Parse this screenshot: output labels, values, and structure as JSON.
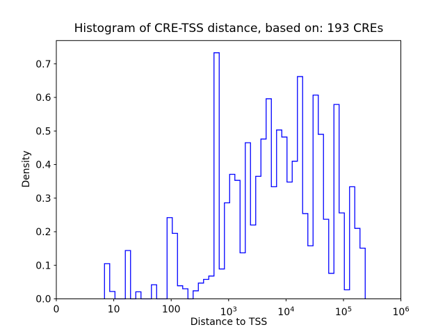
{
  "figure": {
    "title": "Histogram of CRE-TSS distance, based on: 193 CREs",
    "xlabel": "Distance to TSS",
    "ylabel": "Density",
    "cre_count": "193"
  },
  "chart_data": {
    "type": "bar",
    "subtype": "step-histogram",
    "title": "Histogram of CRE-TSS distance, based on: 193 CREs",
    "xlabel": "Distance to TSS",
    "ylabel": "Density",
    "x_scale": "log",
    "grid": false,
    "legend": "none",
    "line_color": "#0000ff",
    "axes_color": "#000000",
    "background_color": "#ffffff",
    "ylim": [
      0,
      0.769
    ],
    "xlim": [
      1,
      1000000
    ],
    "bin_edges": [
      6.9,
      8.5,
      10.5,
      12.9,
      15.9,
      19.6,
      24.2,
      29.8,
      36.7,
      45.3,
      55.8,
      68.8,
      84.8,
      104.5,
      128.8,
      158.7,
      195.6,
      241.1,
      297.2,
      366.3,
      451.4,
      556.4,
      685.8,
      845.2,
      1042,
      1284,
      1582,
      1950,
      2404,
      2963,
      3651,
      4500,
      5547,
      6836,
      8426,
      10385,
      12799,
      15775,
      19443,
      23963,
      29535,
      36402,
      44865,
      55296,
      68152,
      83998,
      103528,
      127598,
      157264,
      193828,
      238893
    ],
    "densities": [
      0.105,
      0.022,
      0,
      0,
      0.144,
      0,
      0.021,
      0,
      0,
      0.042,
      0,
      0,
      0.242,
      0.195,
      0.039,
      0.03,
      0,
      0.024,
      0.047,
      0.058,
      0.068,
      0.733,
      0.089,
      0.286,
      0.371,
      0.353,
      0.137,
      0.465,
      0.22,
      0.365,
      0.476,
      0.596,
      0.334,
      0.503,
      0.482,
      0.348,
      0.41,
      0.662,
      0.254,
      0.158,
      0.607,
      0.49,
      0.237,
      0.076,
      0.579,
      0.256,
      0.027,
      0.334,
      0.21,
      0.151
    ],
    "x_ticks": [
      {
        "value": 0,
        "label": "0"
      },
      {
        "value": 10,
        "label": "10"
      },
      {
        "value": 100,
        "label": "100"
      },
      {
        "value": 1000,
        "base": "10",
        "sup": "3"
      },
      {
        "value": 10000,
        "base": "10",
        "sup": "4"
      },
      {
        "value": 100000,
        "base": "10",
        "sup": "5"
      },
      {
        "value": 1000000,
        "base": "10",
        "sup": "6"
      }
    ],
    "y_ticks": [
      {
        "value": 0.0,
        "label": "0.0"
      },
      {
        "value": 0.1,
        "label": "0.1"
      },
      {
        "value": 0.2,
        "label": "0.2"
      },
      {
        "value": 0.3,
        "label": "0.3"
      },
      {
        "value": 0.4,
        "label": "0.4"
      },
      {
        "value": 0.5,
        "label": "0.5"
      },
      {
        "value": 0.6,
        "label": "0.6"
      },
      {
        "value": 0.7,
        "label": "0.7"
      }
    ]
  }
}
